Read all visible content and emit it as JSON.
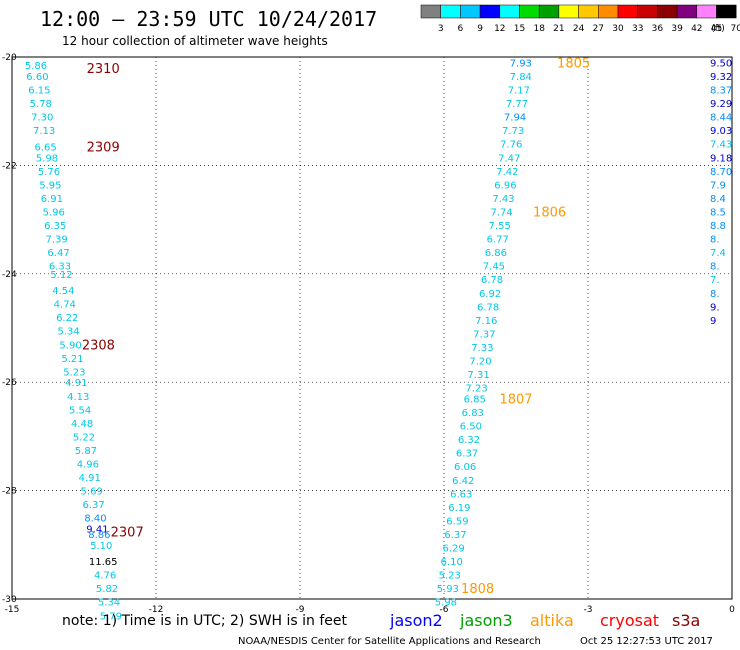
{
  "header": {
    "title": "12:00 — 23:59 UTC 10/24/2017",
    "subtitle": "12 hour collection of altimeter wave heights",
    "note": "note:  1) Time is in UTC;  2) SWH is in feet",
    "credit": "NOAA/NESDIS Center for Satellite Applications and Research",
    "generated": "Oct 25 12:27:53 UTC 2017"
  },
  "colorbar": {
    "unit": "(ft)",
    "labels": [
      "3",
      "6",
      "9",
      "12",
      "15",
      "18",
      "21",
      "24",
      "27",
      "30",
      "33",
      "36",
      "39",
      "42",
      "45",
      "70"
    ],
    "colors": [
      "#808080",
      "#00ffff",
      "#00c8ff",
      "#0000ff",
      "#00ffff",
      "#00dc00",
      "#00a000",
      "#ffff00",
      "#ffc800",
      "#ff8c00",
      "#ff0000",
      "#c80000",
      "#8b0000",
      "#800080",
      "#ff80ff",
      "#000000"
    ]
  },
  "legend": [
    {
      "label": "jason2",
      "color": "#0000ff"
    },
    {
      "label": "jason3",
      "color": "#00a000"
    },
    {
      "label": "altika",
      "color": "#ff9900"
    },
    {
      "label": "cryosat",
      "color": "#ff0000"
    },
    {
      "label": "s3a",
      "color": "#8b0000"
    }
  ],
  "chart_data": {
    "type": "scatter",
    "x_ticks": [
      "-15",
      "-12",
      "-9",
      "-6",
      "-3",
      "0"
    ],
    "y_ticks": [
      "-20",
      "-22",
      "-24",
      "-26",
      "-28",
      "-30"
    ],
    "xlim": [
      -15,
      0
    ],
    "ylim": [
      -30,
      -20
    ],
    "grid": true,
    "series": [
      {
        "name": "s3a",
        "values": [
          {
            "x": -14.5,
            "y": -20.15,
            "v": "5.86"
          },
          {
            "x": -14.47,
            "y": -20.35,
            "v": "6.60"
          },
          {
            "x": -14.43,
            "y": -20.6,
            "v": "6.15"
          },
          {
            "x": -14.4,
            "y": -20.85,
            "v": "5.78"
          },
          {
            "x": -14.37,
            "y": -21.1,
            "v": "7.30"
          },
          {
            "x": -14.33,
            "y": -21.35,
            "v": "7.13"
          },
          {
            "x": -14.3,
            "y": -21.65,
            "v": "6.65"
          },
          {
            "x": -14.27,
            "y": -21.85,
            "v": "5.98"
          },
          {
            "x": -14.23,
            "y": -22.1,
            "v": "5.76"
          },
          {
            "x": -14.2,
            "y": -22.35,
            "v": "5.95"
          },
          {
            "x": -14.17,
            "y": -22.6,
            "v": "6.91"
          },
          {
            "x": -14.13,
            "y": -22.85,
            "v": "5.96"
          },
          {
            "x": -14.1,
            "y": -23.1,
            "v": "6.35"
          },
          {
            "x": -14.07,
            "y": -23.35,
            "v": "7.39"
          },
          {
            "x": -14.03,
            "y": -23.6,
            "v": "6.47"
          },
          {
            "x": -14.0,
            "y": -23.85,
            "v": "6.33"
          },
          {
            "x": -13.97,
            "y": -24.0,
            "v": "5.12"
          },
          {
            "x": -13.93,
            "y": -24.3,
            "v": "4.54"
          },
          {
            "x": -13.9,
            "y": -24.55,
            "v": "4.74"
          },
          {
            "x": -13.85,
            "y": -24.8,
            "v": "6.22"
          },
          {
            "x": -13.82,
            "y": -25.05,
            "v": "5.34"
          },
          {
            "x": -13.78,
            "y": -25.3,
            "v": "5.90"
          },
          {
            "x": -13.74,
            "y": -25.55,
            "v": "5.21"
          },
          {
            "x": -13.7,
            "y": -25.8,
            "v": "5.23"
          },
          {
            "x": -13.66,
            "y": -26.0,
            "v": "4.91"
          },
          {
            "x": -13.62,
            "y": -26.25,
            "v": "4.13"
          },
          {
            "x": -13.58,
            "y": -26.5,
            "v": "5.54"
          },
          {
            "x": -13.54,
            "y": -26.75,
            "v": "4.48"
          },
          {
            "x": -13.5,
            "y": -27.0,
            "v": "5.22"
          },
          {
            "x": -13.46,
            "y": -27.25,
            "v": "5.87"
          },
          {
            "x": -13.42,
            "y": -27.5,
            "v": "4.96"
          },
          {
            "x": -13.38,
            "y": -27.75,
            "v": "4.91"
          },
          {
            "x": -13.34,
            "y": -28.0,
            "v": "5.69"
          },
          {
            "x": -13.3,
            "y": -28.25,
            "v": "6.37"
          },
          {
            "x": -13.26,
            "y": -28.5,
            "v": "8.40"
          },
          {
            "x": -13.22,
            "y": -28.7,
            "v": "9.41"
          },
          {
            "x": -13.18,
            "y": -28.8,
            "v": "8.86"
          },
          {
            "x": -13.14,
            "y": -29.0,
            "v": "5.10"
          },
          {
            "x": -13.1,
            "y": -29.3,
            "v": "11.65"
          },
          {
            "x": -13.06,
            "y": -29.55,
            "v": "4.76"
          },
          {
            "x": -13.02,
            "y": -29.8,
            "v": "5.82"
          },
          {
            "x": -12.98,
            "y": -30.05,
            "v": "5.34"
          },
          {
            "x": -12.94,
            "y": -30.3,
            "v": "5.79"
          }
        ]
      },
      {
        "name": "altika",
        "values": [
          {
            "x": -4.4,
            "y": -20.1,
            "v": "7.93"
          },
          {
            "x": -4.4,
            "y": -20.35,
            "v": "7.84"
          },
          {
            "x": -4.44,
            "y": -20.6,
            "v": "7.17"
          },
          {
            "x": -4.48,
            "y": -20.85,
            "v": "7.77"
          },
          {
            "x": -4.52,
            "y": -21.1,
            "v": "7.94"
          },
          {
            "x": -4.56,
            "y": -21.35,
            "v": "7.73"
          },
          {
            "x": -4.6,
            "y": -21.6,
            "v": "7.76"
          },
          {
            "x": -4.64,
            "y": -21.85,
            "v": "7.47"
          },
          {
            "x": -4.68,
            "y": -22.1,
            "v": "7.42"
          },
          {
            "x": -4.72,
            "y": -22.35,
            "v": "6.96"
          },
          {
            "x": -4.76,
            "y": -22.6,
            "v": "7.43"
          },
          {
            "x": -4.8,
            "y": -22.85,
            "v": "7.74"
          },
          {
            "x": -4.84,
            "y": -23.1,
            "v": "7.55"
          },
          {
            "x": -4.88,
            "y": -23.35,
            "v": "6.77"
          },
          {
            "x": -4.92,
            "y": -23.6,
            "v": "6.86"
          },
          {
            "x": -4.96,
            "y": -23.85,
            "v": "7.45"
          },
          {
            "x": -5.0,
            "y": -24.1,
            "v": "6.78"
          },
          {
            "x": -5.04,
            "y": -24.35,
            "v": "6.92"
          },
          {
            "x": -5.08,
            "y": -24.6,
            "v": "6.78"
          },
          {
            "x": -5.12,
            "y": -24.85,
            "v": "7.16"
          },
          {
            "x": -5.16,
            "y": -25.1,
            "v": "7.37"
          },
          {
            "x": -5.2,
            "y": -25.35,
            "v": "7.33"
          },
          {
            "x": -5.24,
            "y": -25.6,
            "v": "7.20"
          },
          {
            "x": -5.28,
            "y": -25.85,
            "v": "7.31"
          },
          {
            "x": -5.32,
            "y": -26.1,
            "v": "7.23"
          },
          {
            "x": -5.36,
            "y": -26.3,
            "v": "6.85"
          },
          {
            "x": -5.4,
            "y": -26.55,
            "v": "6.83"
          },
          {
            "x": -5.44,
            "y": -26.8,
            "v": "6.50"
          },
          {
            "x": -5.48,
            "y": -27.05,
            "v": "6.32"
          },
          {
            "x": -5.52,
            "y": -27.3,
            "v": "6.37"
          },
          {
            "x": -5.56,
            "y": -27.55,
            "v": "6.06"
          },
          {
            "x": -5.6,
            "y": -27.8,
            "v": "6.42"
          },
          {
            "x": -5.64,
            "y": -28.05,
            "v": "6.63"
          },
          {
            "x": -5.68,
            "y": -28.3,
            "v": "6.19"
          },
          {
            "x": -5.72,
            "y": -28.55,
            "v": "6.59"
          },
          {
            "x": -5.76,
            "y": -28.8,
            "v": "6.37"
          },
          {
            "x": -5.8,
            "y": -29.05,
            "v": "6.29"
          },
          {
            "x": -5.84,
            "y": -29.3,
            "v": "6.10"
          },
          {
            "x": -5.88,
            "y": -29.55,
            "v": "5.23"
          },
          {
            "x": -5.92,
            "y": -29.8,
            "v": "5.93"
          },
          {
            "x": -5.96,
            "y": -30.05,
            "v": "5.98"
          }
        ]
      },
      {
        "name": "jason2",
        "values": [
          {
            "x": -0.15,
            "y": -20.1,
            "v": "9.50"
          },
          {
            "x": -0.15,
            "y": -20.35,
            "v": "9.32"
          },
          {
            "x": -0.15,
            "y": -20.6,
            "v": "8.37"
          },
          {
            "x": -0.15,
            "y": -20.85,
            "v": "9.29"
          },
          {
            "x": -0.15,
            "y": -21.1,
            "v": "8.44"
          },
          {
            "x": -0.15,
            "y": -21.35,
            "v": "9.03"
          },
          {
            "x": -0.15,
            "y": -21.6,
            "v": "7.43"
          },
          {
            "x": -0.15,
            "y": -21.85,
            "v": "9.18"
          },
          {
            "x": -0.15,
            "y": -22.1,
            "v": "8.70"
          },
          {
            "x": -0.15,
            "y": -22.35,
            "v": "7.9"
          },
          {
            "x": -0.15,
            "y": -22.6,
            "v": "8.4"
          },
          {
            "x": -0.15,
            "y": -22.85,
            "v": "8.5"
          },
          {
            "x": -0.15,
            "y": -23.1,
            "v": "8.8"
          },
          {
            "x": -0.15,
            "y": -23.35,
            "v": "8."
          },
          {
            "x": -0.15,
            "y": -23.6,
            "v": "7.4"
          },
          {
            "x": -0.15,
            "y": -23.85,
            "v": "8."
          },
          {
            "x": -0.15,
            "y": -24.1,
            "v": "7."
          },
          {
            "x": -0.15,
            "y": -24.35,
            "v": "8."
          },
          {
            "x": -0.15,
            "y": -24.6,
            "v": "9."
          },
          {
            "x": -0.15,
            "y": -24.85,
            "v": "9"
          }
        ]
      }
    ],
    "pass_labels": [
      {
        "text": "2310",
        "x": -13.1,
        "y": -20.2,
        "color": "#8b0000"
      },
      {
        "text": "2309",
        "x": -13.1,
        "y": -21.65,
        "color": "#8b0000"
      },
      {
        "text": "2308",
        "x": -13.2,
        "y": -25.3,
        "color": "#8b0000"
      },
      {
        "text": "2307",
        "x": -12.6,
        "y": -28.75,
        "color": "#8b0000"
      },
      {
        "text": "1805",
        "x": -3.3,
        "y": -20.1,
        "color": "#ff9900"
      },
      {
        "text": "1806",
        "x": -3.8,
        "y": -22.85,
        "color": "#ff9900"
      },
      {
        "text": "1807",
        "x": -4.5,
        "y": -26.3,
        "color": "#ff9900"
      },
      {
        "text": "1808",
        "x": -5.3,
        "y": -29.8,
        "color": "#ff9900"
      }
    ]
  }
}
